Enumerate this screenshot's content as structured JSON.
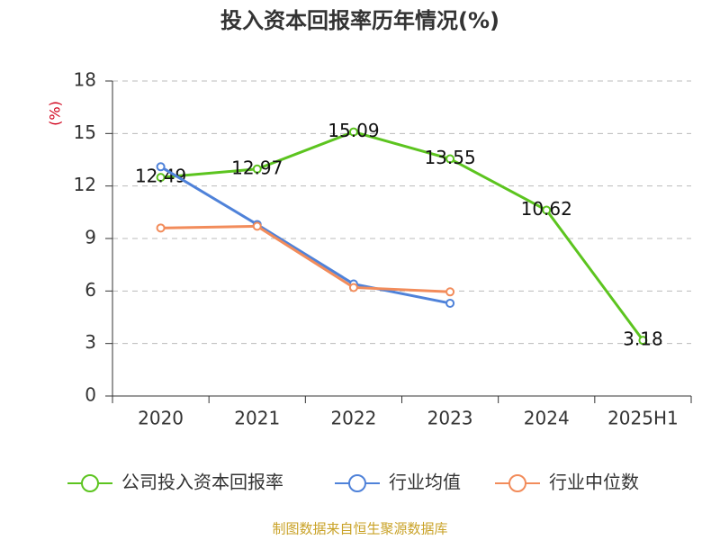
{
  "chart_data": {
    "type": "line",
    "title": "投入资本回报率历年情况(%)",
    "y_label": "(%)",
    "categories": [
      "2020",
      "2021",
      "2022",
      "2023",
      "2024",
      "2025H1"
    ],
    "series": [
      {
        "name": "公司投入资本回报率",
        "color": "#5cc41f",
        "values": [
          12.49,
          12.97,
          15.09,
          13.55,
          10.62,
          3.18
        ],
        "show_labels": true
      },
      {
        "name": "行业均值",
        "color": "#4f82d9",
        "values": [
          13.1,
          9.8,
          6.4,
          5.3,
          null,
          null
        ]
      },
      {
        "name": "行业中位数",
        "color": "#f28c5b",
        "values": [
          9.6,
          9.7,
          6.2,
          5.95,
          null,
          null
        ]
      }
    ],
    "ylim": [
      0,
      18
    ],
    "yticks": [
      0,
      3,
      6,
      9,
      12,
      15,
      18
    ],
    "grid": true,
    "source": "制图数据来自恒生聚源数据库"
  }
}
